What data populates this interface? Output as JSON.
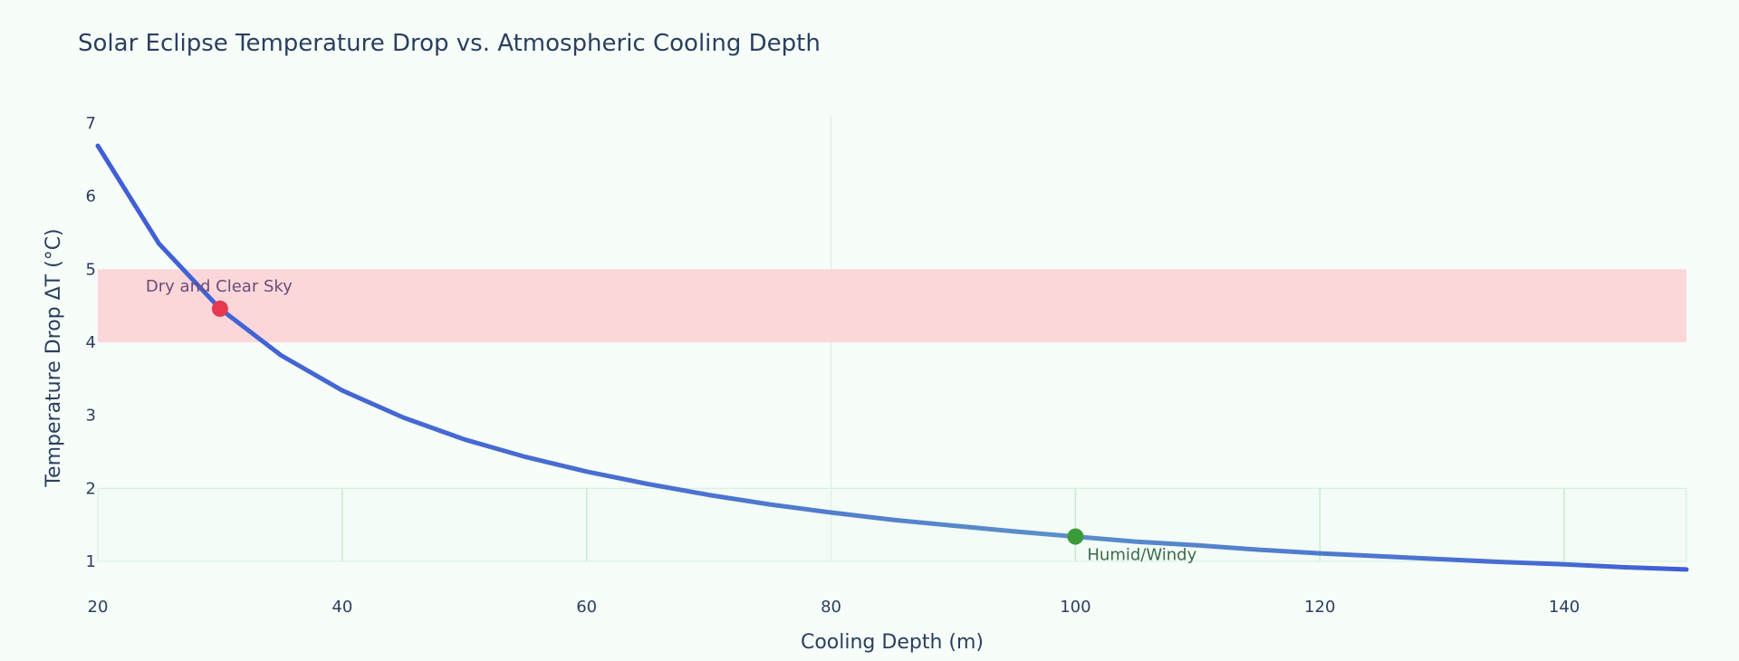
{
  "chart_data": {
    "type": "line",
    "title": "Solar Eclipse Temperature Drop vs. Atmospheric Cooling Depth",
    "xlabel": "Cooling Depth (m)",
    "ylabel": "Temperature Drop ΔT (°C)",
    "xlim": [
      20,
      150
    ],
    "ylim": [
      0.8,
      7.1
    ],
    "xticks": [
      20,
      40,
      60,
      80,
      100,
      120,
      140
    ],
    "yticks": [
      1,
      2,
      3,
      4,
      5,
      6,
      7
    ],
    "grid": true,
    "series": [
      {
        "color": "#3f5fd6",
        "x": [
          20,
          25,
          30,
          35,
          40,
          45,
          50,
          55,
          60,
          65,
          70,
          75,
          80,
          85,
          90,
          95,
          100,
          105,
          110,
          115,
          120,
          125,
          130,
          135,
          140,
          145,
          150
        ],
        "y": [
          6.69,
          5.35,
          4.46,
          3.82,
          3.34,
          2.97,
          2.67,
          2.43,
          2.23,
          2.06,
          1.91,
          1.78,
          1.67,
          1.57,
          1.49,
          1.41,
          1.34,
          1.27,
          1.22,
          1.16,
          1.11,
          1.07,
          1.03,
          0.99,
          0.96,
          0.92,
          0.89
        ]
      }
    ],
    "band": {
      "y0": 4,
      "y1": 5,
      "color": "#fbd3d6"
    },
    "points": [
      {
        "x": 30,
        "y": 4.46,
        "label": "Dry and Clear Sky",
        "color": "#e8384f",
        "label_color": "#6b4c7a"
      },
      {
        "x": 100,
        "y": 1.34,
        "label": "Humid/Windy",
        "color": "#3a9a3a",
        "label_color": "#3d6b4a"
      }
    ]
  }
}
